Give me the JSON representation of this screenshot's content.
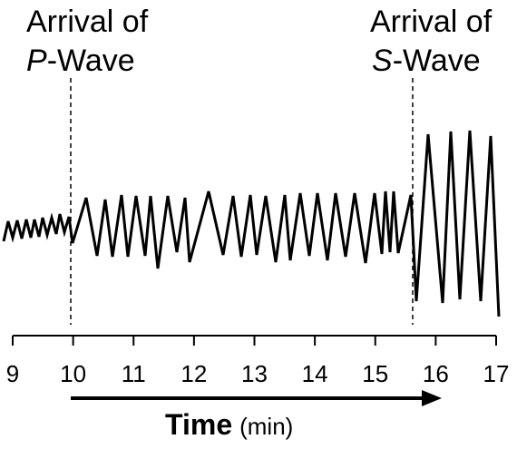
{
  "annotations": {
    "p_wave": {
      "line1": "Arrival of",
      "italic": "P",
      "suffix": "-Wave",
      "time_min": 9.95
    },
    "s_wave": {
      "line1": "Arrival of",
      "italic": "S",
      "suffix": "-Wave",
      "time_min": 15.62
    }
  },
  "axis": {
    "ticks": [
      "9",
      "10",
      "11",
      "12",
      "13",
      "14",
      "15",
      "16",
      "17"
    ],
    "title": "Time",
    "unit": "(min)",
    "range_min": [
      9,
      17
    ]
  },
  "seismogram": {
    "p_arrival_min": 9.95,
    "s_arrival_min": 15.62
  }
}
